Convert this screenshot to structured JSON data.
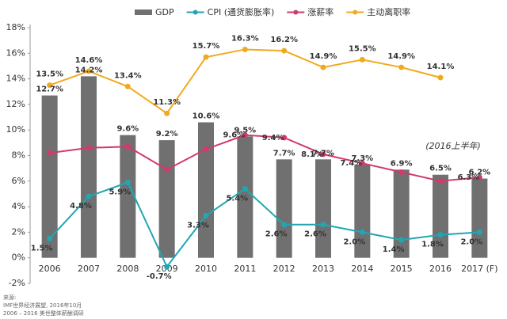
{
  "chart_data": {
    "type": "bar-line",
    "categories": [
      "2006",
      "2007",
      "2008",
      "2009",
      "2010",
      "2011",
      "2012",
      "2013",
      "2014",
      "2015",
      "2016",
      "2017 (F)"
    ],
    "series": [
      {
        "name": "GDP",
        "type": "bar",
        "color": "#707070",
        "values": [
          12.7,
          14.2,
          9.6,
          9.2,
          10.6,
          9.5,
          7.7,
          7.7,
          7.3,
          6.9,
          6.5,
          6.2
        ],
        "value_labels": [
          "12.7%",
          "14.2%",
          "9.6%",
          "9.2%",
          "10.6%",
          "9.5%",
          "7.7%",
          "7.7%",
          "7.3%",
          "6.9%",
          "6.5%",
          "6.2%"
        ]
      },
      {
        "name": "CPI (通货膨胀率)",
        "type": "line",
        "color": "#1fa7b3",
        "values": [
          1.5,
          4.8,
          5.9,
          -0.7,
          3.3,
          5.4,
          2.6,
          2.6,
          2.0,
          1.4,
          1.8,
          2.0
        ],
        "value_labels": [
          "1.5%",
          "4.8%",
          "5.9%",
          "-0.7%",
          "3.3%",
          "5.4%",
          "2.6%",
          "2.6%",
          "2.0%",
          "1.4%",
          "1.8%",
          "2.0%"
        ]
      },
      {
        "name": "涨薪率",
        "type": "line",
        "color": "#d23a6c",
        "values": [
          8.2,
          8.6,
          8.7,
          6.9,
          8.5,
          9.6,
          9.4,
          8.1,
          7.4,
          6.7,
          6.0,
          6.3
        ],
        "value_labels": [
          null,
          null,
          null,
          null,
          null,
          "9.6%",
          "9.4%",
          "8.1%",
          "7.4%",
          null,
          null,
          "6.3%"
        ]
      },
      {
        "name": "主动离职率",
        "type": "line",
        "color": "#f0aa22",
        "values": [
          13.5,
          14.6,
          13.4,
          11.3,
          15.7,
          16.3,
          16.2,
          14.9,
          15.5,
          14.9,
          14.1,
          null
        ],
        "value_labels": [
          "13.5%",
          "14.6%",
          "13.4%",
          "11.3%",
          "15.7%",
          "16.3%",
          "16.2%",
          "14.9%",
          "15.5%",
          "14.9%",
          "14.1%",
          null
        ]
      }
    ],
    "ylim": [
      -2,
      18
    ],
    "yticks": [
      {
        "value": -2,
        "label": "-2%"
      },
      {
        "value": 0,
        "label": "0%"
      },
      {
        "value": 2,
        "label": "2%"
      },
      {
        "value": 4,
        "label": "4%"
      },
      {
        "value": 6,
        "label": "6%"
      },
      {
        "value": 8,
        "label": "8%"
      },
      {
        "value": 10,
        "label": "10%"
      },
      {
        "value": 12,
        "label": "12%"
      },
      {
        "value": 14,
        "label": "14%"
      },
      {
        "value": 16,
        "label": "16%"
      },
      {
        "value": 18,
        "label": "18%"
      }
    ],
    "annotation": "(2016上半年)",
    "source": [
      "来源:",
      "IMF世界经济展望, 2016年10月",
      "2006 – 2016 美世整体薪酬调研"
    ]
  }
}
